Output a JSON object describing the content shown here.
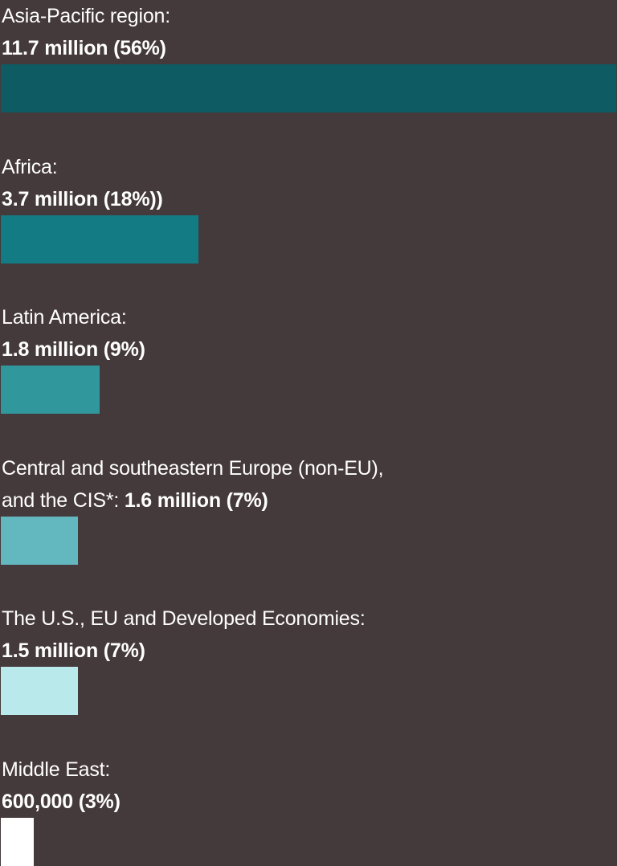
{
  "chart_data": {
    "type": "bar",
    "orientation": "horizontal",
    "categories": [
      "Asia-Pacific region",
      "Africa",
      "Latin America",
      "Central and southeastern Europe (non-EU), and the CIS*",
      "The U.S., EU and Developed Economies",
      "Middle East"
    ],
    "values": [
      56,
      18,
      9,
      7,
      7,
      3
    ],
    "value_unit": "%",
    "title": "",
    "xlabel": "",
    "ylabel": "",
    "grid": false,
    "legend": "none",
    "items": [
      {
        "region": "Asia-Pacific region:",
        "line_break_after_region": true,
        "value": "11.7 million (56%)",
        "share": 56,
        "color": "#0f5b63"
      },
      {
        "region": "Africa:",
        "line_break_after_region": true,
        "value": "3.7 million (18%))",
        "share": 18,
        "color": "#127b84"
      },
      {
        "region": "Latin America:",
        "line_break_after_region": true,
        "value": "1.8 million (9%)",
        "share": 9,
        "color": "#30979d"
      },
      {
        "region": "Central and southeastern Europe (non-EU),",
        "region_line2": "and the CIS*:",
        "line_break_after_region": false,
        "value": "1.6 million (7%)",
        "share": 7,
        "color": "#63b8c0"
      },
      {
        "region": "The U.S., EU and Developed Economies:",
        "line_break_after_region": true,
        "value": "1.5 million (7%)",
        "share": 7,
        "color": "#b9e9ea"
      },
      {
        "region": "Middle East:",
        "line_break_after_region": true,
        "value": "600,000 (3%)",
        "share": 3,
        "color": "#ffffff"
      }
    ]
  },
  "colors": {
    "background": "#44393b",
    "text": "#ffffff"
  }
}
